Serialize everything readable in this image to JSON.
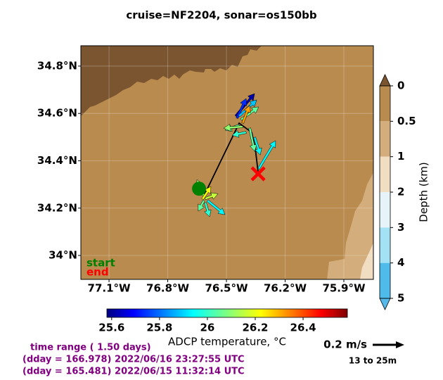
{
  "chart_data": {
    "type": "quiver-map",
    "title": "cruise=NF2204,   sonar=os150bb",
    "xlim": [
      -77.244,
      -75.749
    ],
    "ylim": [
      33.899,
      34.886
    ],
    "xticks": [
      {
        "value": -77.1,
        "label": "77.1°W"
      },
      {
        "value": -76.8,
        "label": "76.8°W"
      },
      {
        "value": -76.5,
        "label": "76.5°W"
      },
      {
        "value": -76.2,
        "label": "76.2°W"
      },
      {
        "value": -75.9,
        "label": "75.9°W"
      }
    ],
    "yticks": [
      {
        "value": 34.0,
        "label": "34°N"
      },
      {
        "value": 34.2,
        "label": "34.2°N"
      },
      {
        "value": 34.4,
        "label": "34.4°N"
      },
      {
        "value": 34.6,
        "label": "34.6°N"
      },
      {
        "value": 34.8,
        "label": "34.8°N"
      }
    ],
    "grid": true,
    "track": {
      "lon": [
        -76.615,
        -76.435,
        -76.371,
        -76.353,
        -76.338
      ],
      "lat": [
        34.252,
        34.559,
        34.52,
        34.455,
        34.351
      ],
      "color": "#000000"
    },
    "start": {
      "label": "start",
      "lon": -76.64,
      "lat": 34.282,
      "color": "#008000"
    },
    "end": {
      "label": "end",
      "lon": -76.338,
      "lat": 34.345,
      "color": "#ff0000"
    },
    "vectors": {
      "lon": [
        -76.453,
        -76.446,
        -76.435,
        -76.425,
        -76.417,
        -76.435,
        -76.417,
        -76.399,
        -76.381,
        -76.356,
        -76.335,
        -76.615,
        -76.608,
        -76.615,
        -76.608,
        -76.597,
        -76.622
      ],
      "lat": [
        34.589,
        34.58,
        34.589,
        34.574,
        34.559,
        34.55,
        34.544,
        34.52,
        34.538,
        34.499,
        34.366,
        34.252,
        34.24,
        34.232,
        34.223,
        34.232,
        34.238
      ],
      "u": [
        0.12,
        0.058,
        0.111,
        0.111,
        0.044,
        -0.089,
        -0.12,
        -0.089,
        0.031,
        0.036,
        0.107,
        -0.044,
        0.08,
        -0.036,
        0.027,
        0.111,
        0.053
      ],
      "v": [
        0.142,
        0.124,
        0.102,
        0.08,
        0.111,
        -0.031,
        -0.009,
        -0.018,
        -0.147,
        -0.111,
        0.178,
        0.102,
        0.031,
        -0.067,
        -0.089,
        -0.089,
        0.08
      ],
      "temp": [
        25.62,
        25.75,
        25.9,
        26.05,
        26.3,
        26.05,
        26.1,
        26.0,
        26.05,
        25.95,
        25.95,
        26.1,
        26.15,
        26.05,
        26.0,
        25.95,
        26.2
      ]
    },
    "temp_colorbar": {
      "label": "ADCP temperature, °C",
      "clim": [
        25.58,
        26.585
      ],
      "ticks": [
        25.6,
        25.8,
        26.0,
        26.2,
        26.4
      ]
    },
    "depth_colorbar": {
      "label": "Depth (km)",
      "levels": [
        0,
        0.5,
        1,
        2,
        3,
        4,
        5
      ],
      "colors": [
        "#b98b4f",
        "#d4ad7c",
        "#f1ddc2",
        "#e6f3f9",
        "#a3e2f5",
        "#4fbbea"
      ],
      "over_color": "#7b5430",
      "under_color": "#55b9ea"
    },
    "key": {
      "value": 0.2,
      "label": "0.2 m/s",
      "depth_label": "13 to 25m"
    },
    "time_range": [
      "time range ( 1.50 days)",
      "(dday = 166.978) 2022/06/16 23:27:55 UTC",
      "(dday = 165.481) 2022/06/15 11:32:14 UTC"
    ]
  }
}
